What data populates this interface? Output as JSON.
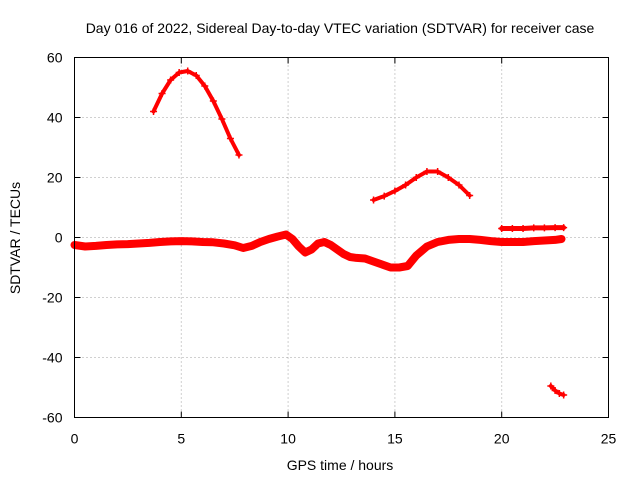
{
  "chart_data": {
    "type": "scatter",
    "title": "Day 016 of 2022, Sidereal Day-to-day VTEC variation (SDTVAR) for receiver case",
    "xlabel": "GPS time / hours",
    "ylabel": "SDTVAR / TECUs",
    "xlim": [
      0,
      25
    ],
    "ylim": [
      -60,
      60
    ],
    "xticks": [
      0,
      5,
      10,
      15,
      20,
      25
    ],
    "yticks": [
      -60,
      -40,
      -20,
      0,
      20,
      40,
      60
    ],
    "xtick_labels": [
      "0",
      "5",
      "10",
      "15",
      "20",
      "25"
    ],
    "ytick_labels": [
      "-60",
      "-40",
      "-20",
      "0",
      "20",
      "40",
      "60"
    ],
    "grid": true,
    "marker_color": "#ff0000",
    "series": [
      {
        "name": "arc-main",
        "x": [
          0,
          0.5,
          1,
          1.5,
          2,
          2.5,
          3,
          3.5,
          4,
          4.5,
          5,
          5.5,
          6,
          6.5,
          7,
          7.5,
          7.9,
          8.3,
          8.7,
          9.1,
          9.5,
          9.9,
          10.2,
          10.5,
          10.8,
          11.1,
          11.4,
          11.7,
          12.0,
          12.3,
          12.6,
          12.9,
          13.2,
          13.6,
          14.0,
          14.4,
          14.8,
          15.2,
          15.6,
          16.0,
          16.5,
          17.0,
          17.5,
          18.0,
          18.5,
          19.0,
          19.5,
          20.0,
          20.5,
          21.0,
          21.5,
          22.0,
          22.5,
          22.8
        ],
        "y": [
          -2.5,
          -3,
          -2.8,
          -2.5,
          -2.3,
          -2.2,
          -2,
          -1.8,
          -1.5,
          -1.3,
          -1.2,
          -1.3,
          -1.5,
          -1.6,
          -2,
          -2.6,
          -3.5,
          -2.8,
          -1.5,
          -0.5,
          0.3,
          1.0,
          -0.5,
          -3.0,
          -5.0,
          -4.0,
          -2.0,
          -1.5,
          -2.5,
          -4.0,
          -5.5,
          -6.5,
          -6.8,
          -7.0,
          -8.0,
          -9.0,
          -10.0,
          -10.0,
          -9.5,
          -6.0,
          -3.0,
          -1.5,
          -0.8,
          -0.5,
          -0.5,
          -0.8,
          -1.2,
          -1.5,
          -1.5,
          -1.5,
          -1.2,
          -1.0,
          -0.8,
          -0.5
        ],
        "width": 8
      },
      {
        "name": "arc-morning-high",
        "x": [
          3.7,
          4.1,
          4.5,
          4.9,
          5.3,
          5.7,
          6.1,
          6.5,
          6.9,
          7.3,
          7.7
        ],
        "y": [
          42,
          48,
          52.5,
          55,
          55.5,
          54,
          50.5,
          45.5,
          39.5,
          33,
          27.5
        ],
        "width": 4
      },
      {
        "name": "arc-afternoon-high",
        "x": [
          14.0,
          14.5,
          15.0,
          15.5,
          16.0,
          16.5,
          17.0,
          17.5,
          18.0,
          18.5
        ],
        "y": [
          12.5,
          13.8,
          15.5,
          17.5,
          20.0,
          22.0,
          22.0,
          20.0,
          17.5,
          14.0
        ],
        "width": 4
      },
      {
        "name": "arc-evening-flat",
        "x": [
          20.0,
          20.5,
          21.0,
          21.5,
          22.0,
          22.5,
          22.9
        ],
        "y": [
          3.0,
          3.0,
          3.0,
          3.2,
          3.2,
          3.3,
          3.3
        ],
        "width": 5
      },
      {
        "name": "arc-late-low",
        "x": [
          22.3,
          22.5,
          22.7,
          22.9
        ],
        "y": [
          -49.5,
          -51,
          -52,
          -52.5
        ],
        "width": 4
      }
    ]
  }
}
